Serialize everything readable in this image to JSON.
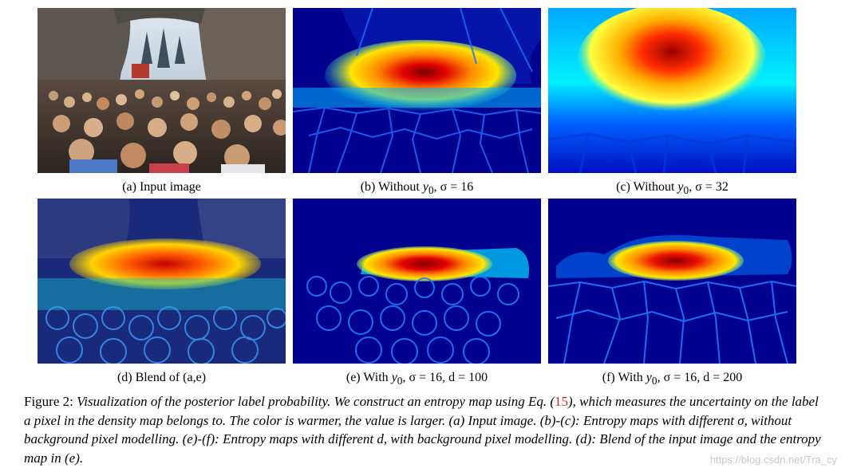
{
  "panels": [
    {
      "id": "a",
      "caption_prefix": "(a) Input image",
      "math": "",
      "caption_suffix": ""
    },
    {
      "id": "b",
      "caption_prefix": "(b) Without ",
      "math": "y",
      "sub": "0",
      "caption_suffix": ", σ = 16"
    },
    {
      "id": "c",
      "caption_prefix": "(c) Without ",
      "math": "y",
      "sub": "0",
      "caption_suffix": ", σ = 32"
    },
    {
      "id": "d",
      "caption_prefix": "(d) Blend of (a,e)",
      "math": "",
      "caption_suffix": ""
    },
    {
      "id": "e",
      "caption_prefix": "(e) With ",
      "math": "y",
      "sub": "0",
      "caption_suffix": ", σ = 16, d = 100"
    },
    {
      "id": "f",
      "caption_prefix": "(f) With ",
      "math": "y",
      "sub": "0",
      "caption_suffix": ", σ = 16, d = 200"
    }
  ],
  "figure_caption": {
    "label": "Figure 2: ",
    "part1": "Visualization of the posterior label probability. We construct an entropy map using Eq. (",
    "ref": "15",
    "part2": "), which measures the uncertainty on the label a pixel in the density map belongs to. The color is warmer, the value is larger. (a) Input image. (b)-(c): Entropy maps with different σ, without background pixel modelling. (e)-(f): Entropy maps with different d, with background pixel modelling. (d): Blend of the input image and the entropy map in (e)."
  },
  "watermark": "https://blog.csdn.net/Tra_cy",
  "colors": {
    "deep_blue": "#00008f",
    "blue": "#0033ff",
    "cyan": "#00e5ff",
    "yellow": "#ffe600",
    "orange": "#ff6a00",
    "red": "#c40000",
    "ref_red": "#d61f1f"
  }
}
